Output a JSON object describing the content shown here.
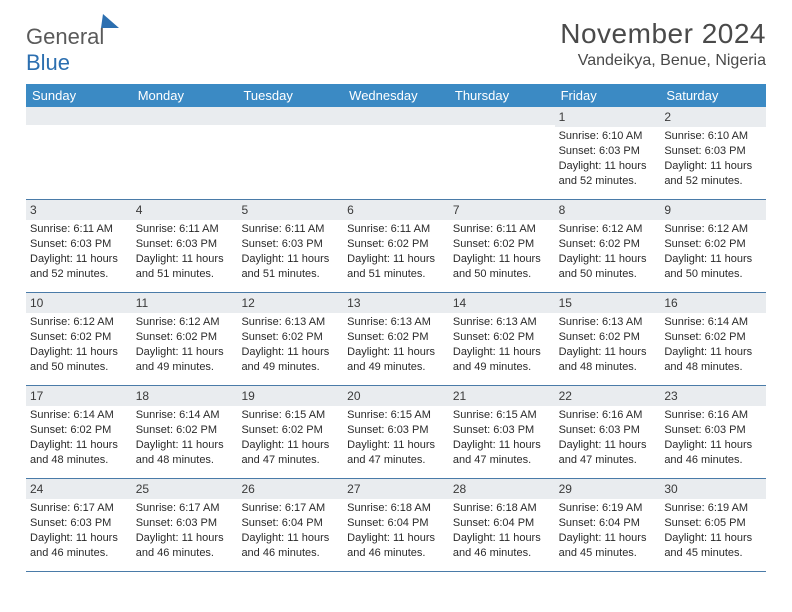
{
  "logo": {
    "text1": "General",
    "text2": "Blue"
  },
  "title": "November 2024",
  "location": "Vandeikya, Benue, Nigeria",
  "colors": {
    "header_bg": "#3b8ac4",
    "daynum_bg": "#e9ecef",
    "row_border": "#4a7ba8",
    "text": "#2a2a2a",
    "title_text": "#4a4a4a"
  },
  "weekdays": [
    "Sunday",
    "Monday",
    "Tuesday",
    "Wednesday",
    "Thursday",
    "Friday",
    "Saturday"
  ],
  "weeks": [
    [
      {
        "n": "",
        "sr": "",
        "ss": "",
        "dl": ""
      },
      {
        "n": "",
        "sr": "",
        "ss": "",
        "dl": ""
      },
      {
        "n": "",
        "sr": "",
        "ss": "",
        "dl": ""
      },
      {
        "n": "",
        "sr": "",
        "ss": "",
        "dl": ""
      },
      {
        "n": "",
        "sr": "",
        "ss": "",
        "dl": ""
      },
      {
        "n": "1",
        "sr": "Sunrise: 6:10 AM",
        "ss": "Sunset: 6:03 PM",
        "dl": "Daylight: 11 hours and 52 minutes."
      },
      {
        "n": "2",
        "sr": "Sunrise: 6:10 AM",
        "ss": "Sunset: 6:03 PM",
        "dl": "Daylight: 11 hours and 52 minutes."
      }
    ],
    [
      {
        "n": "3",
        "sr": "Sunrise: 6:11 AM",
        "ss": "Sunset: 6:03 PM",
        "dl": "Daylight: 11 hours and 52 minutes."
      },
      {
        "n": "4",
        "sr": "Sunrise: 6:11 AM",
        "ss": "Sunset: 6:03 PM",
        "dl": "Daylight: 11 hours and 51 minutes."
      },
      {
        "n": "5",
        "sr": "Sunrise: 6:11 AM",
        "ss": "Sunset: 6:03 PM",
        "dl": "Daylight: 11 hours and 51 minutes."
      },
      {
        "n": "6",
        "sr": "Sunrise: 6:11 AM",
        "ss": "Sunset: 6:02 PM",
        "dl": "Daylight: 11 hours and 51 minutes."
      },
      {
        "n": "7",
        "sr": "Sunrise: 6:11 AM",
        "ss": "Sunset: 6:02 PM",
        "dl": "Daylight: 11 hours and 50 minutes."
      },
      {
        "n": "8",
        "sr": "Sunrise: 6:12 AM",
        "ss": "Sunset: 6:02 PM",
        "dl": "Daylight: 11 hours and 50 minutes."
      },
      {
        "n": "9",
        "sr": "Sunrise: 6:12 AM",
        "ss": "Sunset: 6:02 PM",
        "dl": "Daylight: 11 hours and 50 minutes."
      }
    ],
    [
      {
        "n": "10",
        "sr": "Sunrise: 6:12 AM",
        "ss": "Sunset: 6:02 PM",
        "dl": "Daylight: 11 hours and 50 minutes."
      },
      {
        "n": "11",
        "sr": "Sunrise: 6:12 AM",
        "ss": "Sunset: 6:02 PM",
        "dl": "Daylight: 11 hours and 49 minutes."
      },
      {
        "n": "12",
        "sr": "Sunrise: 6:13 AM",
        "ss": "Sunset: 6:02 PM",
        "dl": "Daylight: 11 hours and 49 minutes."
      },
      {
        "n": "13",
        "sr": "Sunrise: 6:13 AM",
        "ss": "Sunset: 6:02 PM",
        "dl": "Daylight: 11 hours and 49 minutes."
      },
      {
        "n": "14",
        "sr": "Sunrise: 6:13 AM",
        "ss": "Sunset: 6:02 PM",
        "dl": "Daylight: 11 hours and 49 minutes."
      },
      {
        "n": "15",
        "sr": "Sunrise: 6:13 AM",
        "ss": "Sunset: 6:02 PM",
        "dl": "Daylight: 11 hours and 48 minutes."
      },
      {
        "n": "16",
        "sr": "Sunrise: 6:14 AM",
        "ss": "Sunset: 6:02 PM",
        "dl": "Daylight: 11 hours and 48 minutes."
      }
    ],
    [
      {
        "n": "17",
        "sr": "Sunrise: 6:14 AM",
        "ss": "Sunset: 6:02 PM",
        "dl": "Daylight: 11 hours and 48 minutes."
      },
      {
        "n": "18",
        "sr": "Sunrise: 6:14 AM",
        "ss": "Sunset: 6:02 PM",
        "dl": "Daylight: 11 hours and 48 minutes."
      },
      {
        "n": "19",
        "sr": "Sunrise: 6:15 AM",
        "ss": "Sunset: 6:02 PM",
        "dl": "Daylight: 11 hours and 47 minutes."
      },
      {
        "n": "20",
        "sr": "Sunrise: 6:15 AM",
        "ss": "Sunset: 6:03 PM",
        "dl": "Daylight: 11 hours and 47 minutes."
      },
      {
        "n": "21",
        "sr": "Sunrise: 6:15 AM",
        "ss": "Sunset: 6:03 PM",
        "dl": "Daylight: 11 hours and 47 minutes."
      },
      {
        "n": "22",
        "sr": "Sunrise: 6:16 AM",
        "ss": "Sunset: 6:03 PM",
        "dl": "Daylight: 11 hours and 47 minutes."
      },
      {
        "n": "23",
        "sr": "Sunrise: 6:16 AM",
        "ss": "Sunset: 6:03 PM",
        "dl": "Daylight: 11 hours and 46 minutes."
      }
    ],
    [
      {
        "n": "24",
        "sr": "Sunrise: 6:17 AM",
        "ss": "Sunset: 6:03 PM",
        "dl": "Daylight: 11 hours and 46 minutes."
      },
      {
        "n": "25",
        "sr": "Sunrise: 6:17 AM",
        "ss": "Sunset: 6:03 PM",
        "dl": "Daylight: 11 hours and 46 minutes."
      },
      {
        "n": "26",
        "sr": "Sunrise: 6:17 AM",
        "ss": "Sunset: 6:04 PM",
        "dl": "Daylight: 11 hours and 46 minutes."
      },
      {
        "n": "27",
        "sr": "Sunrise: 6:18 AM",
        "ss": "Sunset: 6:04 PM",
        "dl": "Daylight: 11 hours and 46 minutes."
      },
      {
        "n": "28",
        "sr": "Sunrise: 6:18 AM",
        "ss": "Sunset: 6:04 PM",
        "dl": "Daylight: 11 hours and 46 minutes."
      },
      {
        "n": "29",
        "sr": "Sunrise: 6:19 AM",
        "ss": "Sunset: 6:04 PM",
        "dl": "Daylight: 11 hours and 45 minutes."
      },
      {
        "n": "30",
        "sr": "Sunrise: 6:19 AM",
        "ss": "Sunset: 6:05 PM",
        "dl": "Daylight: 11 hours and 45 minutes."
      }
    ]
  ]
}
